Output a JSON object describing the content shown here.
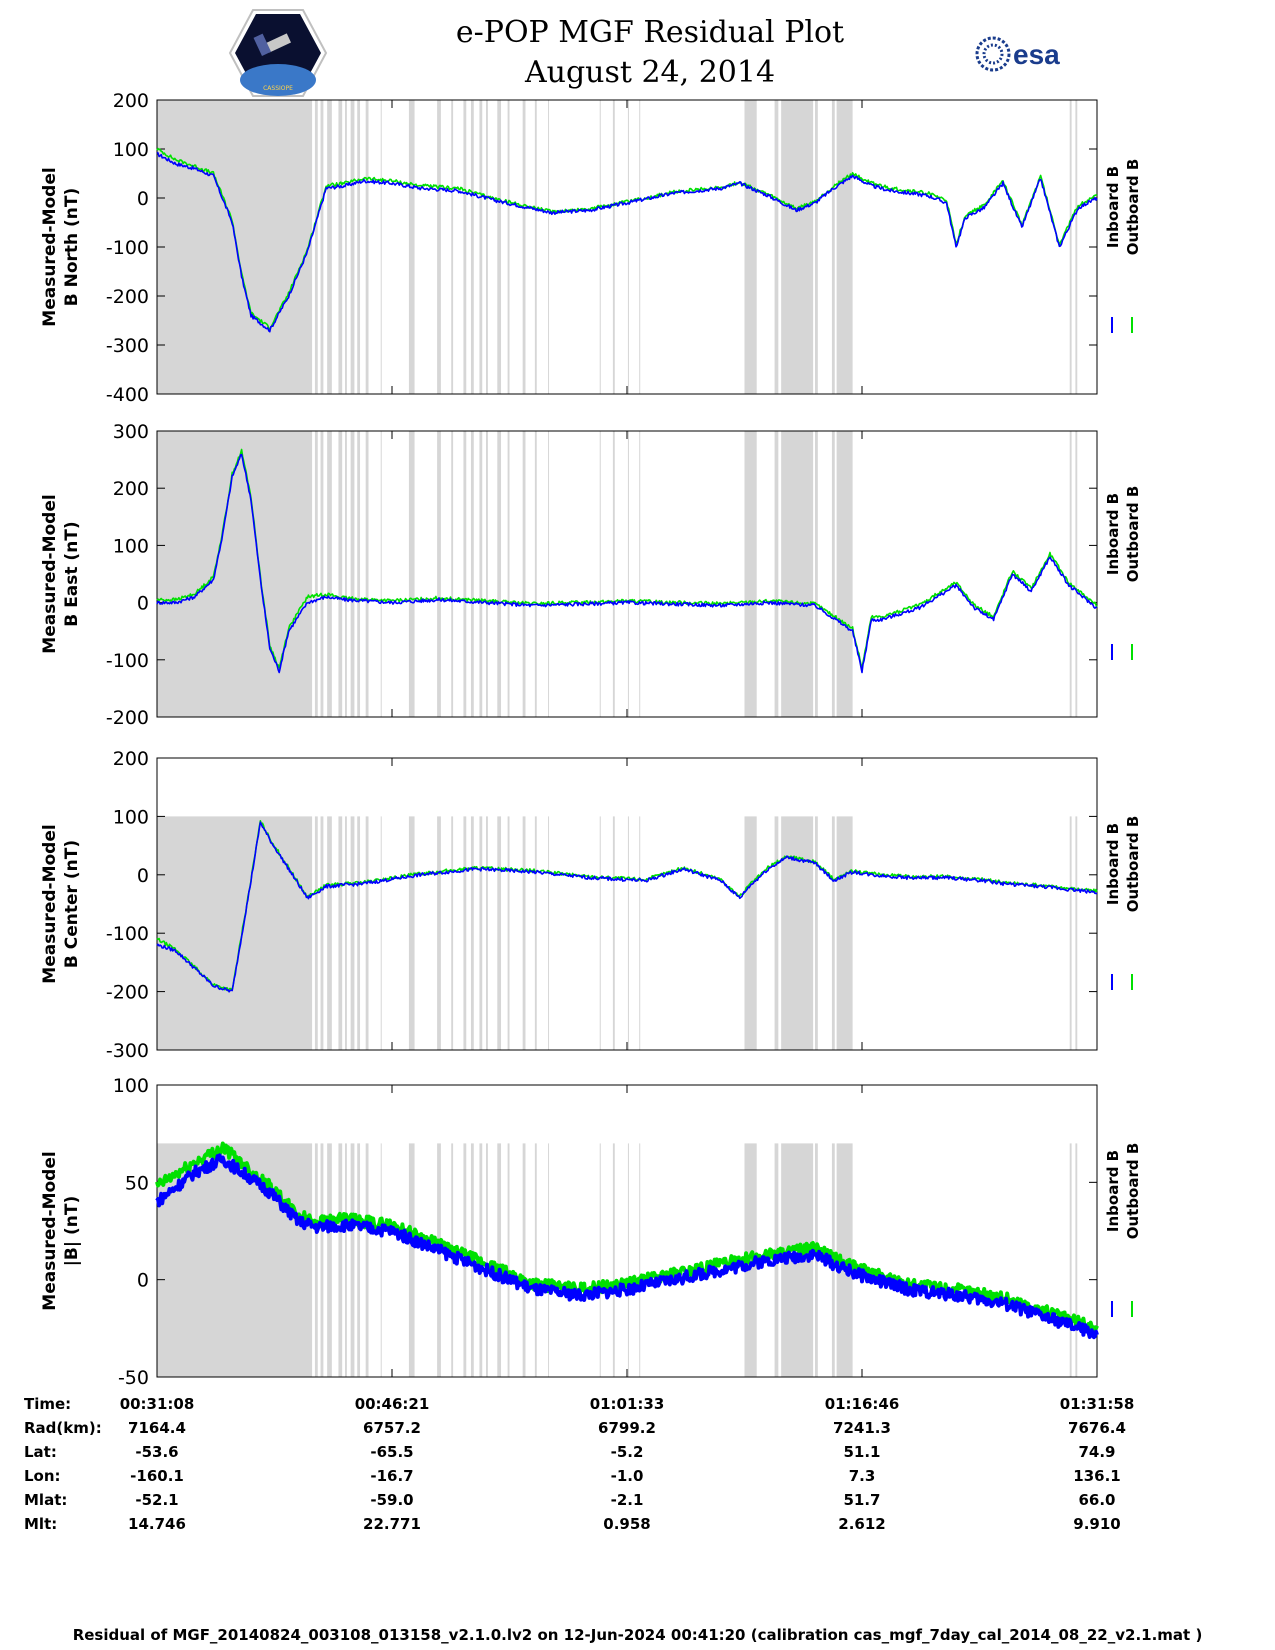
{
  "header": {
    "title_line1": "e-POP MGF Residual Plot",
    "title_line2": "August 24, 2014",
    "logo_left_text": "CASSIOPE",
    "logo_right_text": "esa"
  },
  "colors": {
    "inboard": "#0000ff",
    "outboard": "#00e000",
    "shade": "#d6d6d6"
  },
  "legend": {
    "inboard": "Inboard B",
    "outboard": "Outboard B"
  },
  "chart_data": [
    {
      "type": "line",
      "ylabel": [
        "Measured-Model",
        "B North (nT)"
      ],
      "ylim": [
        -400,
        200
      ],
      "yticks": [
        200,
        100,
        0,
        -100,
        -200,
        -300,
        -400
      ],
      "shade_top": 200,
      "x": [
        0,
        0.02,
        0.04,
        0.06,
        0.08,
        0.09,
        0.1,
        0.12,
        0.14,
        0.16,
        0.18,
        0.2,
        0.22,
        0.25,
        0.28,
        0.32,
        0.36,
        0.42,
        0.46,
        0.5,
        0.55,
        0.6,
        0.62,
        0.65,
        0.68,
        0.7,
        0.72,
        0.74,
        0.76,
        0.78,
        0.8,
        0.82,
        0.84,
        0.85,
        0.86,
        0.88,
        0.9,
        0.92,
        0.94,
        0.96,
        0.98,
        1.0
      ],
      "series": [
        {
          "name": "Inboard B",
          "values": [
            90,
            70,
            60,
            45,
            -50,
            -160,
            -240,
            -270,
            -200,
            -110,
            20,
            25,
            35,
            30,
            20,
            15,
            -5,
            -30,
            -25,
            -10,
            10,
            20,
            30,
            5,
            -25,
            -10,
            20,
            45,
            25,
            15,
            10,
            5,
            -10,
            -100,
            -40,
            -20,
            30,
            -60,
            40,
            -100,
            -20,
            0
          ]
        },
        {
          "name": "Outboard B",
          "values": [
            100,
            78,
            65,
            50,
            -45,
            -155,
            -235,
            -265,
            -195,
            -105,
            25,
            30,
            40,
            35,
            25,
            20,
            -2,
            -28,
            -22,
            -8,
            12,
            22,
            32,
            7,
            -22,
            -8,
            24,
            50,
            30,
            20,
            15,
            10,
            -5,
            -95,
            -35,
            -15,
            35,
            -55,
            45,
            -95,
            -15,
            5
          ]
        }
      ]
    },
    {
      "type": "line",
      "ylabel": [
        "Measured-Model",
        "B East (nT)"
      ],
      "ylim": [
        -200,
        300
      ],
      "yticks": [
        300,
        200,
        100,
        0,
        -100,
        -200
      ],
      "shade_top": 300,
      "x": [
        0,
        0.02,
        0.04,
        0.06,
        0.07,
        0.08,
        0.09,
        0.1,
        0.11,
        0.12,
        0.13,
        0.14,
        0.16,
        0.18,
        0.2,
        0.25,
        0.3,
        0.35,
        0.4,
        0.5,
        0.6,
        0.65,
        0.7,
        0.74,
        0.75,
        0.76,
        0.77,
        0.79,
        0.81,
        0.83,
        0.85,
        0.87,
        0.89,
        0.91,
        0.93,
        0.95,
        0.97,
        1.0
      ],
      "series": [
        {
          "name": "Inboard B",
          "values": [
            0,
            0,
            10,
            40,
            120,
            220,
            260,
            180,
            40,
            -80,
            -120,
            -50,
            0,
            10,
            5,
            0,
            5,
            0,
            -5,
            0,
            -5,
            0,
            -5,
            -50,
            -120,
            -30,
            -30,
            -20,
            -10,
            10,
            30,
            -10,
            -30,
            50,
            20,
            80,
            30,
            -10
          ]
        },
        {
          "name": "Outboard B",
          "values": [
            5,
            5,
            15,
            45,
            125,
            225,
            265,
            185,
            45,
            -75,
            -115,
            -45,
            10,
            15,
            8,
            3,
            8,
            3,
            -2,
            3,
            -2,
            3,
            -2,
            -45,
            -115,
            -25,
            -25,
            -15,
            -5,
            15,
            35,
            -5,
            -25,
            55,
            25,
            85,
            35,
            -5
          ]
        }
      ]
    },
    {
      "type": "line",
      "ylabel": [
        "Measured-Model",
        "B Center (nT)"
      ],
      "ylim": [
        -300,
        200
      ],
      "yticks": [
        200,
        100,
        0,
        -100,
        -200,
        -300
      ],
      "shade_top": 100,
      "x": [
        0,
        0.02,
        0.04,
        0.06,
        0.08,
        0.1,
        0.11,
        0.12,
        0.14,
        0.16,
        0.18,
        0.22,
        0.28,
        0.34,
        0.4,
        0.46,
        0.52,
        0.56,
        0.6,
        0.62,
        0.63,
        0.65,
        0.67,
        0.7,
        0.72,
        0.74,
        0.76,
        0.8,
        0.84,
        0.88,
        0.9,
        0.94,
        1.0
      ],
      "series": [
        {
          "name": "Inboard B",
          "values": [
            -120,
            -130,
            -160,
            -190,
            -200,
            -10,
            90,
            60,
            10,
            -40,
            -20,
            -15,
            0,
            10,
            5,
            -5,
            -10,
            10,
            -10,
            -40,
            -20,
            10,
            30,
            20,
            -10,
            5,
            0,
            -5,
            -5,
            -10,
            -15,
            -20,
            -30
          ]
        },
        {
          "name": "Outboard B",
          "values": [
            -110,
            -128,
            -158,
            -188,
            -198,
            -8,
            92,
            62,
            12,
            -38,
            -18,
            -13,
            2,
            12,
            7,
            -3,
            -8,
            12,
            -8,
            -38,
            -18,
            12,
            32,
            22,
            -8,
            7,
            2,
            -3,
            -3,
            -8,
            -13,
            -18,
            -28
          ]
        }
      ]
    },
    {
      "type": "line",
      "ylabel": [
        "Measured-Model",
        "|B| (nT)"
      ],
      "ylim": [
        -50,
        100
      ],
      "yticks": [
        100,
        50,
        0,
        -50
      ],
      "shade_top": 70,
      "x": [
        0,
        0.04,
        0.07,
        0.1,
        0.12,
        0.15,
        0.17,
        0.2,
        0.25,
        0.3,
        0.35,
        0.4,
        0.45,
        0.5,
        0.55,
        0.6,
        0.65,
        0.7,
        0.72,
        0.75,
        0.8,
        0.85,
        0.9,
        0.95,
        1.0
      ],
      "series": [
        {
          "name": "Inboard B",
          "values": [
            40,
            55,
            62,
            52,
            45,
            30,
            27,
            28,
            25,
            15,
            5,
            -5,
            -8,
            -5,
            0,
            5,
            10,
            13,
            8,
            2,
            -5,
            -8,
            -12,
            -20,
            -28
          ]
        },
        {
          "name": "Outboard B",
          "values": [
            48,
            60,
            68,
            56,
            48,
            33,
            30,
            31,
            28,
            18,
            8,
            -2,
            -5,
            -2,
            3,
            8,
            13,
            16,
            11,
            5,
            -2,
            -5,
            -9,
            -17,
            -25
          ]
        }
      ]
    }
  ],
  "info": {
    "labels": [
      "Time:",
      "Rad(km):",
      "Lat:",
      "Lon:",
      "Mlat:",
      "Mlt:"
    ],
    "columns": [
      [
        "00:31:08",
        "7164.4",
        "-53.6",
        "-160.1",
        "-52.1",
        "14.746"
      ],
      [
        "00:46:21",
        "6757.2",
        "-65.5",
        "-16.7",
        "-59.0",
        "22.771"
      ],
      [
        "01:01:33",
        "6799.2",
        "-5.2",
        "-1.0",
        "-2.1",
        "0.958"
      ],
      [
        "01:16:46",
        "7241.3",
        "51.1",
        "7.3",
        "51.7",
        "2.612"
      ],
      [
        "01:31:58",
        "7676.4",
        "74.9",
        "136.1",
        "66.0",
        "9.910"
      ]
    ]
  },
  "footer": "Residual of MGF_20140824_003108_013158_v2.1.0.lv2 on 12-Jun-2024 00:41:20 (calibration cas_mgf_7day_cal_2014_08_22_v2.1.mat )"
}
